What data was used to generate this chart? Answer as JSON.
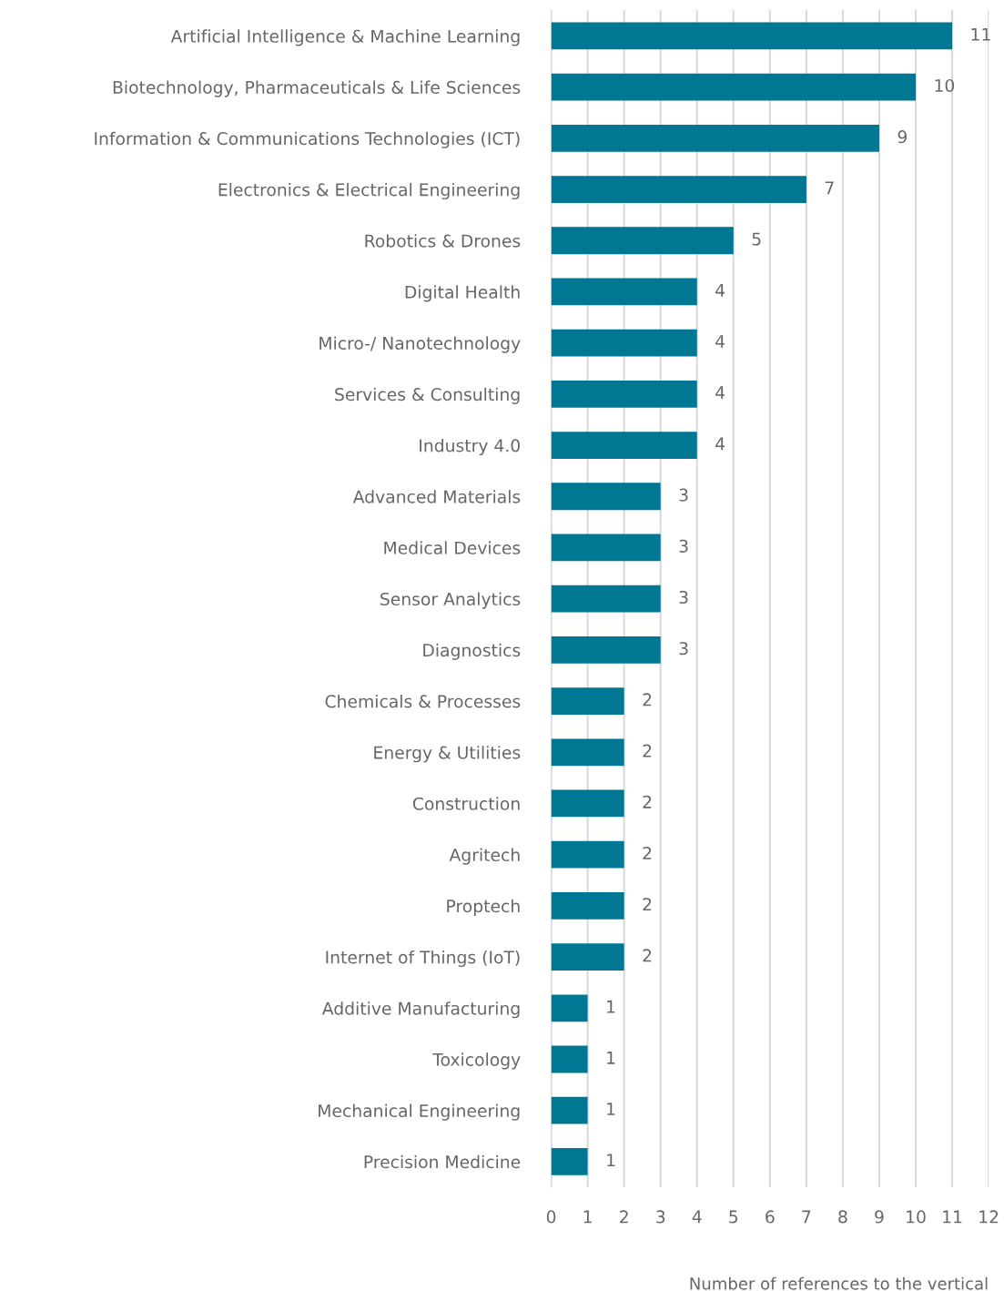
{
  "chart_data": {
    "type": "bar",
    "orientation": "horizontal",
    "xlabel": "Number of references to the vertical",
    "categories": [
      "Artificial Intelligence & Machine Learning",
      "Biotechnology, Pharmaceuticals & Life Sciences",
      "Information & Communications Technologies (ICT)",
      "Electronics & Electrical Engineering",
      "Robotics & Drones",
      "Digital Health",
      "Micro-/ Nanotechnology",
      "Services & Consulting",
      "Industry 4.0",
      "Advanced Materials",
      "Medical Devices",
      "Sensor Analytics",
      "Diagnostics",
      "Chemicals & Processes",
      "Energy & Utilities",
      "Construction",
      "Agritech",
      "Proptech",
      "Internet of Things (IoT)",
      "Additive Manufacturing",
      "Toxicology",
      "Mechanical Engineering",
      "Precision Medicine"
    ],
    "values": [
      11,
      10,
      9,
      7,
      5,
      4,
      4,
      4,
      4,
      3,
      3,
      3,
      3,
      2,
      2,
      2,
      2,
      2,
      2,
      1,
      1,
      1,
      1
    ],
    "color": "#007894",
    "xlim": [
      0,
      12
    ],
    "xticks": [
      0,
      1,
      2,
      3,
      4,
      5,
      6,
      7,
      8,
      9,
      10,
      11,
      12
    ],
    "grid": "x",
    "data_labels": true
  }
}
